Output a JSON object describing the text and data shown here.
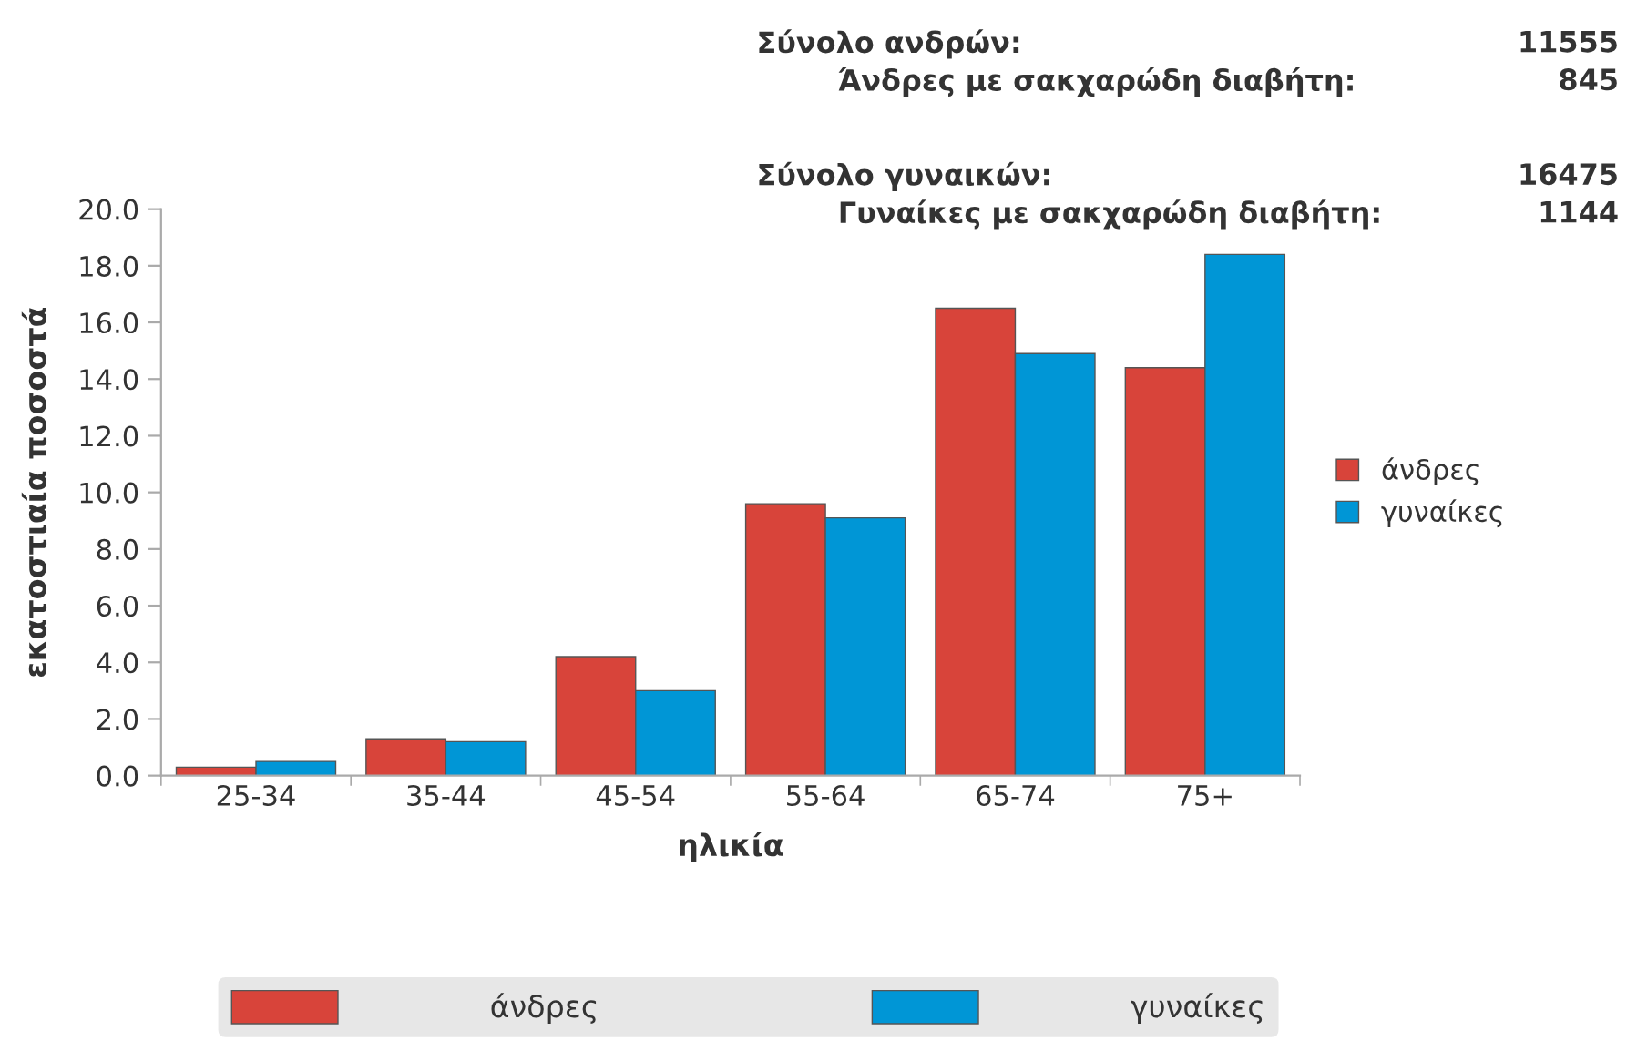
{
  "chart_data": {
    "type": "bar",
    "xlabel": "ηλικία",
    "ylabel": "εκατοστιαία ποσοστά",
    "categories": [
      "25-34",
      "35-44",
      "45-54",
      "55-64",
      "65-74",
      "75+"
    ],
    "series": [
      {
        "name": "άνδρες",
        "color": "#d8443a",
        "values": [
          0.3,
          1.3,
          4.2,
          9.6,
          16.5,
          14.4
        ]
      },
      {
        "name": "γυναίκες",
        "color": "#0096d6",
        "values": [
          0.5,
          1.2,
          3.0,
          9.1,
          14.9,
          18.4
        ]
      }
    ],
    "ylim": [
      0,
      20
    ],
    "yticks": [
      {
        "value": 0,
        "label": "0.0"
      },
      {
        "value": 2,
        "label": "2.0"
      },
      {
        "value": 4,
        "label": "4.0"
      },
      {
        "value": 6,
        "label": "6.0"
      },
      {
        "value": 8,
        "label": "8.0"
      },
      {
        "value": 10,
        "label": "10.0"
      },
      {
        "value": 12,
        "label": "12.0"
      },
      {
        "value": 14,
        "label": "14.0"
      },
      {
        "value": 16,
        "label": "16.0"
      },
      {
        "value": 18,
        "label": "18.0"
      },
      {
        "value": 20,
        "label": "20.0"
      }
    ],
    "grid": false,
    "legend": "right",
    "annotations": [
      "Σύνολο ανδρών:",
      "11555",
      "Άνδρες με σακχαρώδη διαβήτη:",
      "845",
      "Σύνολο γυναικών:",
      "16475",
      "Γυναίκες με σακχαρώδη διαβήτη:",
      "1144"
    ]
  }
}
